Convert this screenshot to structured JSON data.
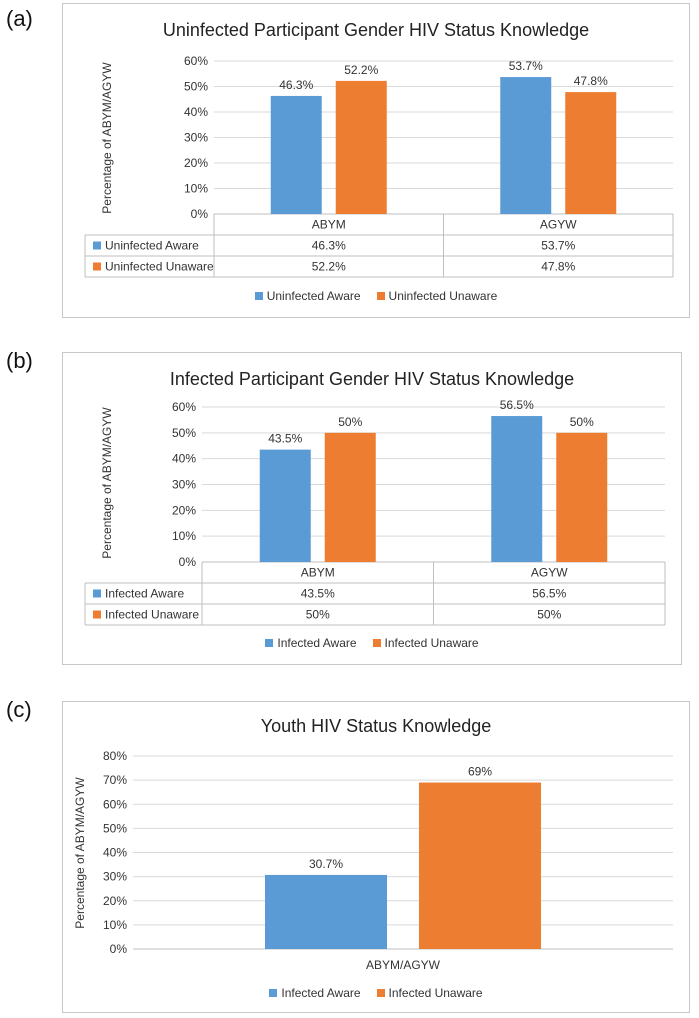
{
  "colors": {
    "blue": "#5b9bd5",
    "orange": "#ed7d31"
  },
  "panels": {
    "a": {
      "label": "(a)"
    },
    "b": {
      "label": "(b)"
    },
    "c": {
      "label": "(c)"
    }
  },
  "chart_data": [
    {
      "type": "bar",
      "title": "Uninfected Participant Gender HIV Status Knowledge",
      "ylabel": "Percentage of ABYM/AGYW",
      "xlabel": "",
      "ylim": [
        0,
        60
      ],
      "yticks": [
        "0%",
        "10%",
        "20%",
        "30%",
        "40%",
        "50%",
        "60%"
      ],
      "categories": [
        "ABYM",
        "AGYW"
      ],
      "series": [
        {
          "name": "Uninfected Aware",
          "values": [
            46.3,
            53.7
          ],
          "labels": [
            "46.3%",
            "53.7%"
          ],
          "color": "#5b9bd5"
        },
        {
          "name": "Uninfected Unaware",
          "values": [
            52.2,
            47.8
          ],
          "labels": [
            "52.2%",
            "47.8%"
          ],
          "color": "#ed7d31"
        }
      ],
      "data_table": true
    },
    {
      "type": "bar",
      "title": "Infected Participant Gender HIV Status Knowledge",
      "ylabel": "Percentage of ABYM/AGYW",
      "xlabel": "",
      "ylim": [
        0,
        60
      ],
      "yticks": [
        "0%",
        "10%",
        "20%",
        "30%",
        "40%",
        "50%",
        "60%"
      ],
      "categories": [
        "ABYM",
        "AGYW"
      ],
      "series": [
        {
          "name": "Infected Aware",
          "values": [
            43.5,
            56.5
          ],
          "labels": [
            "43.5%",
            "56.5%"
          ],
          "color": "#5b9bd5"
        },
        {
          "name": "Infected Unaware",
          "values": [
            50,
            50
          ],
          "labels": [
            "50%",
            "50%"
          ],
          "color": "#ed7d31"
        }
      ],
      "data_table": true
    },
    {
      "type": "bar",
      "title": "Youth HIV Status Knowledge",
      "ylabel": "Percentage of ABYM/AGYW",
      "xlabel": "",
      "ylim": [
        0,
        80
      ],
      "yticks": [
        "0%",
        "10%",
        "20%",
        "30%",
        "40%",
        "50%",
        "60%",
        "70%",
        "80%"
      ],
      "categories": [
        "ABYM/AGYW"
      ],
      "series": [
        {
          "name": "Infected Aware",
          "values": [
            30.7
          ],
          "labels": [
            "30.7%"
          ],
          "color": "#5b9bd5"
        },
        {
          "name": "Infected Unaware",
          "values": [
            69
          ],
          "labels": [
            "69%"
          ],
          "color": "#ed7d31"
        }
      ],
      "data_table": false
    }
  ]
}
